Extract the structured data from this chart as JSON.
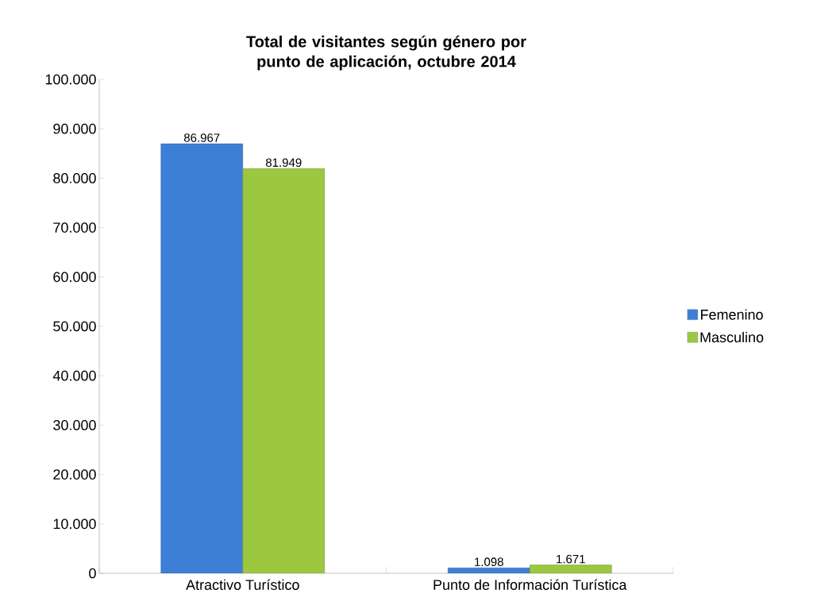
{
  "chart_data": {
    "type": "bar",
    "title": "Total de visitantes según género por punto de aplicación, octubre 2014",
    "categories": [
      "Atractivo Turístico",
      "Punto de Información Turística"
    ],
    "series": [
      {
        "name": "Femenino",
        "color": "#3d7fd6",
        "values": [
          86967,
          1098
        ],
        "value_labels": [
          "86.967",
          "1.098"
        ]
      },
      {
        "name": "Masculino",
        "color": "#9bc83f",
        "values": [
          81949,
          1671
        ],
        "value_labels": [
          "81.949",
          "1.671"
        ]
      }
    ],
    "ylim": [
      0,
      100000
    ],
    "yticks": [
      {
        "value": 0,
        "label": "0"
      },
      {
        "value": 10000,
        "label": "10.000"
      },
      {
        "value": 20000,
        "label": "20.000"
      },
      {
        "value": 30000,
        "label": "30.000"
      },
      {
        "value": 40000,
        "label": "40.000"
      },
      {
        "value": 50000,
        "label": "50.000"
      },
      {
        "value": 60000,
        "label": "60.000"
      },
      {
        "value": 70000,
        "label": "70.000"
      },
      {
        "value": 80000,
        "label": "80.000"
      },
      {
        "value": 90000,
        "label": "90.000"
      },
      {
        "value": 100000,
        "label": "100.000"
      }
    ],
    "grid": false,
    "legend": "right"
  }
}
